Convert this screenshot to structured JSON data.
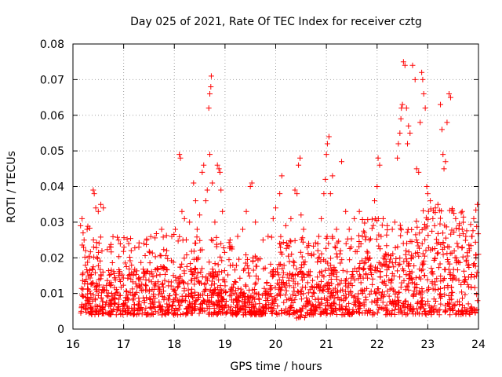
{
  "chart_data": {
    "type": "scatter",
    "title": "Day 025 of 2021, Rate Of TEC Index for receiver cztg",
    "xlabel": "GPS time / hours",
    "ylabel": "ROTI / TECUs",
    "xlim": [
      16,
      24
    ],
    "ylim": [
      0,
      0.08
    ],
    "xticks": [
      "16",
      "17",
      "18",
      "19",
      "20",
      "21",
      "22",
      "23",
      "24"
    ],
    "yticks": [
      "0",
      "0.01",
      "0.02",
      "0.03",
      "0.04",
      "0.05",
      "0.06",
      "0.07",
      "0.08"
    ],
    "grid": true,
    "marker": "+",
    "color": "#ff0000",
    "series": [
      {
        "name": "ROTI",
        "points": [
          [
            16.15,
            0.029
          ],
          [
            16.18,
            0.031
          ],
          [
            16.2,
            0.027
          ],
          [
            16.22,
            0.025
          ],
          [
            16.25,
            0.022
          ],
          [
            16.28,
            0.028
          ],
          [
            16.32,
            0.02
          ],
          [
            16.4,
            0.039
          ],
          [
            16.42,
            0.038
          ],
          [
            16.45,
            0.034
          ],
          [
            16.5,
            0.033
          ],
          [
            16.55,
            0.035
          ],
          [
            16.6,
            0.034
          ],
          [
            16.75,
            0.023
          ],
          [
            16.9,
            0.025
          ],
          [
            17.1,
            0.024
          ],
          [
            17.15,
            0.022
          ],
          [
            17.3,
            0.023
          ],
          [
            17.4,
            0.024
          ],
          [
            17.75,
            0.028
          ],
          [
            17.85,
            0.022
          ],
          [
            17.95,
            0.026
          ],
          [
            18.02,
            0.028
          ],
          [
            18.1,
            0.049
          ],
          [
            18.12,
            0.048
          ],
          [
            18.15,
            0.033
          ],
          [
            18.2,
            0.031
          ],
          [
            18.3,
            0.03
          ],
          [
            18.38,
            0.041
          ],
          [
            18.42,
            0.036
          ],
          [
            18.45,
            0.028
          ],
          [
            18.5,
            0.032
          ],
          [
            18.55,
            0.044
          ],
          [
            18.58,
            0.046
          ],
          [
            18.62,
            0.036
          ],
          [
            18.65,
            0.039
          ],
          [
            18.68,
            0.062
          ],
          [
            18.7,
            0.066
          ],
          [
            18.72,
            0.068
          ],
          [
            18.73,
            0.071
          ],
          [
            18.7,
            0.049
          ],
          [
            18.75,
            0.041
          ],
          [
            18.8,
            0.03
          ],
          [
            18.85,
            0.046
          ],
          [
            18.88,
            0.045
          ],
          [
            18.9,
            0.044
          ],
          [
            18.92,
            0.039
          ],
          [
            18.95,
            0.033
          ],
          [
            19.1,
            0.025
          ],
          [
            19.25,
            0.026
          ],
          [
            19.35,
            0.028
          ],
          [
            19.42,
            0.033
          ],
          [
            19.5,
            0.04
          ],
          [
            19.53,
            0.041
          ],
          [
            19.6,
            0.03
          ],
          [
            19.75,
            0.025
          ],
          [
            19.85,
            0.026
          ],
          [
            19.95,
            0.031
          ],
          [
            20.0,
            0.034
          ],
          [
            20.08,
            0.038
          ],
          [
            20.12,
            0.043
          ],
          [
            20.2,
            0.029
          ],
          [
            20.3,
            0.031
          ],
          [
            20.38,
            0.039
          ],
          [
            20.42,
            0.038
          ],
          [
            20.45,
            0.046
          ],
          [
            20.48,
            0.048
          ],
          [
            20.5,
            0.032
          ],
          [
            20.55,
            0.028
          ],
          [
            20.65,
            0.024
          ],
          [
            20.75,
            0.021
          ],
          [
            20.85,
            0.026
          ],
          [
            20.9,
            0.031
          ],
          [
            20.95,
            0.038
          ],
          [
            20.98,
            0.042
          ],
          [
            21.0,
            0.049
          ],
          [
            21.02,
            0.052
          ],
          [
            21.05,
            0.054
          ],
          [
            21.08,
            0.038
          ],
          [
            21.12,
            0.043
          ],
          [
            21.2,
            0.028
          ],
          [
            21.3,
            0.047
          ],
          [
            21.38,
            0.033
          ],
          [
            21.45,
            0.028
          ],
          [
            21.55,
            0.031
          ],
          [
            21.65,
            0.033
          ],
          [
            21.75,
            0.027
          ],
          [
            21.85,
            0.025
          ],
          [
            21.95,
            0.036
          ],
          [
            22.0,
            0.04
          ],
          [
            22.02,
            0.048
          ],
          [
            22.05,
            0.046
          ],
          [
            22.12,
            0.031
          ],
          [
            22.2,
            0.029
          ],
          [
            22.3,
            0.028
          ],
          [
            22.35,
            0.03
          ],
          [
            22.4,
            0.048
          ],
          [
            22.42,
            0.052
          ],
          [
            22.45,
            0.055
          ],
          [
            22.47,
            0.059
          ],
          [
            22.48,
            0.062
          ],
          [
            22.5,
            0.063
          ],
          [
            22.52,
            0.075
          ],
          [
            22.55,
            0.074
          ],
          [
            22.58,
            0.062
          ],
          [
            22.6,
            0.052
          ],
          [
            22.62,
            0.057
          ],
          [
            22.65,
            0.055
          ],
          [
            22.7,
            0.074
          ],
          [
            22.75,
            0.07
          ],
          [
            22.78,
            0.045
          ],
          [
            22.82,
            0.044
          ],
          [
            22.85,
            0.058
          ],
          [
            22.88,
            0.072
          ],
          [
            22.9,
            0.07
          ],
          [
            22.92,
            0.066
          ],
          [
            22.95,
            0.062
          ],
          [
            22.98,
            0.04
          ],
          [
            23.0,
            0.038
          ],
          [
            23.05,
            0.036
          ],
          [
            23.1,
            0.031
          ],
          [
            23.15,
            0.034
          ],
          [
            23.2,
            0.035
          ],
          [
            23.25,
            0.063
          ],
          [
            23.28,
            0.056
          ],
          [
            23.3,
            0.049
          ],
          [
            23.32,
            0.045
          ],
          [
            23.35,
            0.047
          ],
          [
            23.38,
            0.058
          ],
          [
            23.42,
            0.066
          ],
          [
            23.45,
            0.065
          ],
          [
            23.55,
            0.031
          ],
          [
            23.62,
            0.029
          ],
          [
            23.68,
            0.028
          ],
          [
            23.75,
            0.026
          ],
          [
            23.82,
            0.022
          ],
          [
            23.9,
            0.018
          ],
          [
            23.95,
            0.02
          ],
          [
            23.98,
            0.035
          ],
          [
            24.0,
            0.021
          ]
        ]
      }
    ]
  }
}
